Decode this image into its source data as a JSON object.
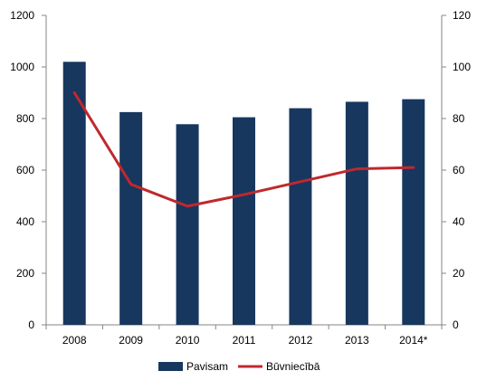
{
  "chart_data": {
    "type": "bar",
    "categories": [
      "2008",
      "2009",
      "2010",
      "2011",
      "2012",
      "2013",
      "2014*"
    ],
    "series": [
      {
        "name": "Pavisam",
        "type": "bar",
        "axis": "left",
        "values": [
          1020,
          825,
          778,
          805,
          840,
          865,
          875
        ]
      },
      {
        "name": "Būvniecībā",
        "type": "line",
        "axis": "right",
        "values": [
          90,
          54.5,
          46,
          50.5,
          55.5,
          60.5,
          61
        ]
      }
    ],
    "y_left": {
      "ylim": [
        0,
        1200
      ],
      "ticks": [
        0,
        200,
        400,
        600,
        800,
        1000,
        1200
      ]
    },
    "y_right": {
      "ylim": [
        0,
        120
      ],
      "ticks": [
        0,
        20,
        40,
        60,
        80,
        100,
        120
      ]
    },
    "grid": false,
    "legend_position": "bottom",
    "colors": {
      "bar": "#17375e",
      "line": "#c0282d",
      "axis": "#868686"
    }
  }
}
